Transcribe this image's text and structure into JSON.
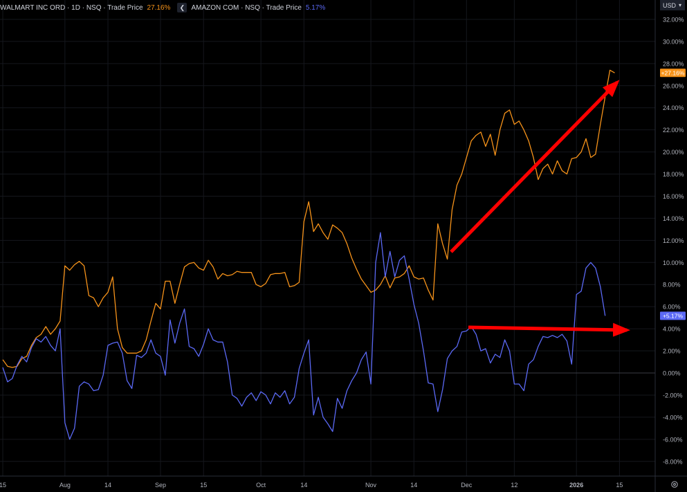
{
  "legend": {
    "series1_label": "WALMART INC ORD · 1D · NSQ · Trade Price",
    "series1_value": "27.16%",
    "series2_label": "AMAZON COM · NSQ · Trade Price",
    "series2_value": "5.17%",
    "collapse_icon": "chevron-left-icon"
  },
  "currency": {
    "label": "USD",
    "icon": "chevron-down-icon"
  },
  "settings_icon": "gear-icon",
  "colors": {
    "background": "#000000",
    "walmart": "#f7931a",
    "amazon": "#5b69f5",
    "arrow": "#ff0000"
  },
  "chart_data": {
    "type": "line",
    "grid": true,
    "ylim": [
      -9,
      33
    ],
    "y_unit": "%",
    "y_ticks": [
      "32.00%",
      "30.00%",
      "28.00%",
      "26.00%",
      "24.00%",
      "22.00%",
      "20.00%",
      "18.00%",
      "16.00%",
      "14.00%",
      "12.00%",
      "10.00%",
      "8.00%",
      "6.00%",
      "4.00%",
      "2.00%",
      "0.00%",
      "-2.00%",
      "-4.00%",
      "-6.00%",
      "-8.00%"
    ],
    "x_ticks": [
      {
        "label": "15",
        "i": 0
      },
      {
        "label": "Aug",
        "i": 13
      },
      {
        "label": "14",
        "i": 22
      },
      {
        "label": "Sep",
        "i": 33
      },
      {
        "label": "15",
        "i": 42
      },
      {
        "label": "Oct",
        "i": 54
      },
      {
        "label": "14",
        "i": 63
      },
      {
        "label": "Nov",
        "i": 77
      },
      {
        "label": "14",
        "i": 86
      },
      {
        "label": "Dec",
        "i": 97
      },
      {
        "label": "12",
        "i": 107
      },
      {
        "label": "2026",
        "i": 120
      },
      {
        "label": "15",
        "i": 129
      }
    ],
    "price_labels": [
      {
        "text": "+27.16%",
        "series": 0
      },
      {
        "text": "+5.17%",
        "series": 1
      }
    ],
    "series": [
      {
        "name": "WALMART INC ORD",
        "values": [
          1.2,
          0.6,
          0.5,
          0.6,
          1.3,
          1.5,
          2.5,
          3.2,
          3.5,
          4.2,
          3.5,
          4.0,
          4.7,
          9.7,
          9.3,
          9.8,
          10.1,
          9.7,
          7.0,
          6.8,
          6.0,
          6.8,
          7.3,
          8.7,
          4.0,
          2.3,
          1.8,
          1.8,
          1.8,
          2.0,
          3.0,
          4.7,
          6.3,
          5.8,
          8.3,
          8.3,
          6.3,
          8.0,
          9.6,
          9.9,
          10.0,
          9.5,
          9.3,
          10.2,
          9.6,
          8.5,
          9.0,
          8.8,
          8.9,
          9.2,
          9.1,
          9.1,
          9.1,
          8.0,
          7.8,
          8.1,
          8.9,
          9.0,
          9.0,
          9.1,
          7.8,
          7.9,
          8.2,
          13.7,
          15.5,
          12.8,
          13.5,
          12.7,
          12.1,
          13.4,
          13.1,
          12.7,
          11.7,
          10.4,
          9.4,
          8.5,
          7.9,
          7.3,
          7.5,
          8.0,
          8.8,
          7.7,
          8.6,
          8.7,
          9.0,
          9.7,
          8.7,
          8.5,
          8.6,
          7.5,
          6.6,
          13.5,
          11.7,
          10.3,
          14.8,
          17.0,
          18.0,
          19.5,
          21.0,
          21.5,
          21.8,
          20.5,
          21.6,
          19.7,
          22.0,
          23.5,
          23.8,
          22.5,
          22.8,
          22.0,
          21.0,
          19.5,
          17.5,
          18.5,
          18.9,
          18.0,
          19.2,
          18.3,
          18.0,
          19.4,
          19.5,
          20.0,
          21.2,
          19.5,
          19.8,
          22.5,
          25.0,
          27.4,
          27.16
        ]
      },
      {
        "name": "AMAZON COM",
        "values": [
          0.5,
          -0.8,
          -0.5,
          0.7,
          1.5,
          1.0,
          2.3,
          3.1,
          2.8,
          3.3,
          2.5,
          2.0,
          4.0,
          -4.5,
          -6.0,
          -5.0,
          -1.2,
          -0.8,
          -1.0,
          -1.6,
          -1.5,
          -0.2,
          2.5,
          2.7,
          2.8,
          1.8,
          -0.7,
          -1.4,
          1.6,
          1.4,
          1.8,
          3.0,
          1.8,
          1.5,
          -0.2,
          4.8,
          2.7,
          4.5,
          5.8,
          2.4,
          2.2,
          1.5,
          2.6,
          4.0,
          3.0,
          2.8,
          2.8,
          1.0,
          -2.0,
          -2.3,
          -3.0,
          -2.2,
          -1.8,
          -2.5,
          -1.7,
          -2.0,
          -2.8,
          -1.8,
          -2.2,
          -1.6,
          -2.8,
          -2.2,
          0.4,
          1.8,
          3.0,
          -3.8,
          -2.2,
          -4.0,
          -4.6,
          -5.3,
          -2.3,
          -3.2,
          -1.6,
          -0.7,
          0.0,
          1.2,
          1.9,
          -1.0,
          10.0,
          12.7,
          8.7,
          11.0,
          8.7,
          10.2,
          10.6,
          8.5,
          6.2,
          4.5,
          2.0,
          -0.9,
          -1.0,
          -3.5,
          -1.5,
          1.3,
          2.0,
          2.4,
          3.7,
          3.8,
          4.2,
          3.5,
          2.0,
          2.2,
          0.9,
          1.7,
          1.4,
          3.0,
          2.0,
          -1.0,
          -1.0,
          -1.6,
          0.8,
          1.2,
          2.4,
          3.3,
          3.2,
          3.4,
          3.2,
          3.5,
          2.9,
          0.8,
          7.1,
          7.4,
          9.5,
          10.0,
          9.5,
          7.8,
          5.17
        ]
      }
    ]
  }
}
